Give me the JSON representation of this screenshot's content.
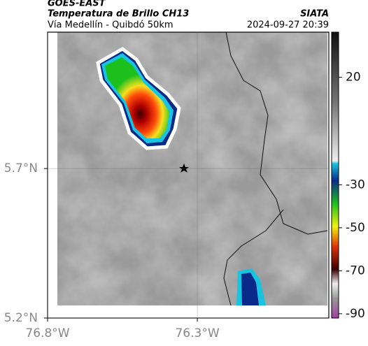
{
  "header": {
    "title": "GOES-EAST",
    "subtitle": "Temperatura de Brillo CH13",
    "source": "SIATA",
    "location": "Vía Medellín - Quibdó 50km",
    "datetime": "2024-09-27 20:39"
  },
  "map": {
    "xlim": [
      -76.8,
      -75.861
    ],
    "ylim": [
      5.2,
      6.156
    ],
    "xticks": [
      {
        "value": -76.8,
        "label": "76.8°W"
      },
      {
        "value": -76.3,
        "label": "76.3°W"
      }
    ],
    "yticks": [
      {
        "value": 5.7,
        "label": "5.7°N"
      },
      {
        "value": 5.2,
        "label": "5.2°N"
      }
    ]
  },
  "colorbar": {
    "lim": [
      -92,
      41
    ],
    "ticks": [
      20,
      -30,
      -50,
      -70,
      -90
    ]
  }
}
